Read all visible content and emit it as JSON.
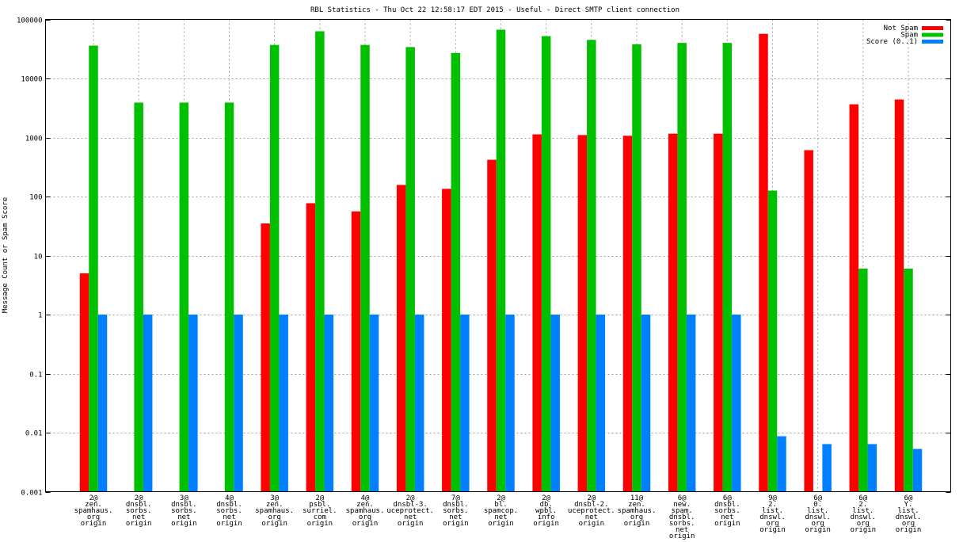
{
  "chart_data": {
    "type": "bar",
    "title": "RBL Statistics - Thu Oct 22 12:58:17 EDT 2015 - Useful - Direct SMTP client connection",
    "xlabel": "",
    "ylabel": "Message Count or Spam Score",
    "yscale": "log",
    "ylim": [
      0.001,
      100000
    ],
    "yticks": [
      "0.001",
      "0.01",
      "0.1",
      "1",
      "10",
      "100",
      "1000",
      "10000",
      "100000"
    ],
    "ytick_values": [
      0.001,
      0.01,
      0.1,
      1,
      10,
      100,
      1000,
      10000,
      100000
    ],
    "grid": true,
    "legend_position": "top-right",
    "categories": [
      [
        "2@",
        "zen.",
        "spamhaus.",
        "org",
        "origin"
      ],
      [
        "2@",
        "dnsbl.",
        "sorbs.",
        "net",
        "origin"
      ],
      [
        "3@",
        "dnsbl.",
        "sorbs.",
        "net",
        "origin"
      ],
      [
        "4@",
        "dnsbl.",
        "sorbs.",
        "net",
        "origin"
      ],
      [
        "3@",
        "zen.",
        "spamhaus.",
        "org",
        "origin"
      ],
      [
        "2@",
        "psbl.",
        "surriel.",
        "com",
        "origin"
      ],
      [
        "4@",
        "zen.",
        "spamhaus.",
        "org",
        "origin"
      ],
      [
        "2@",
        "dnsbl-3.",
        "uceprotect.",
        "net",
        "origin"
      ],
      [
        "7@",
        "dnsbl.",
        "sorbs.",
        "net",
        "origin"
      ],
      [
        "2@",
        "bl.",
        "spamcop.",
        "net",
        "origin"
      ],
      [
        "2@",
        "db.",
        "wpbl.",
        "info",
        "origin"
      ],
      [
        "2@",
        "dnsbl-2.",
        "uceprotect.",
        "net",
        "origin"
      ],
      [
        "11@",
        "zen.",
        "spamhaus.",
        "org",
        "origin"
      ],
      [
        "6@",
        "new.",
        "spam.",
        "dnsbl.",
        "sorbs.",
        "net",
        "origin"
      ],
      [
        "6@",
        "dnsbl.",
        "sorbs.",
        "net",
        "origin"
      ],
      [
        "9@",
        "2.",
        "list.",
        "dnswl.",
        "org",
        "origin"
      ],
      [
        "6@",
        "0.",
        "list.",
        "dnswl.",
        "org",
        "origin"
      ],
      [
        "6@",
        "2.",
        "list.",
        "dnswl.",
        "org",
        "origin"
      ],
      [
        "6@",
        "Y.",
        "list.",
        "dnswl.",
        "org",
        "origin"
      ]
    ],
    "series": [
      {
        "name": "Not Spam",
        "color": "#ff0000",
        "values": [
          5,
          null,
          null,
          null,
          35,
          77,
          56,
          157,
          135,
          420,
          1130,
          1100,
          1070,
          1160,
          1160,
          57000,
          610,
          3650,
          4400
        ]
      },
      {
        "name": "Spam",
        "color": "#00c000",
        "values": [
          36000,
          3900,
          3900,
          3900,
          37000,
          63000,
          37000,
          34000,
          27000,
          67000,
          52000,
          45000,
          38000,
          40000,
          40000,
          126,
          null,
          6,
          6
        ]
      },
      {
        "name": "Score (0..1)",
        "color": "#0080ff",
        "values": [
          1,
          1,
          1,
          1,
          1,
          1,
          1,
          1,
          1,
          1,
          1,
          1,
          1,
          1,
          1,
          0.0087,
          0.0064,
          0.0064,
          0.0053
        ]
      }
    ]
  }
}
